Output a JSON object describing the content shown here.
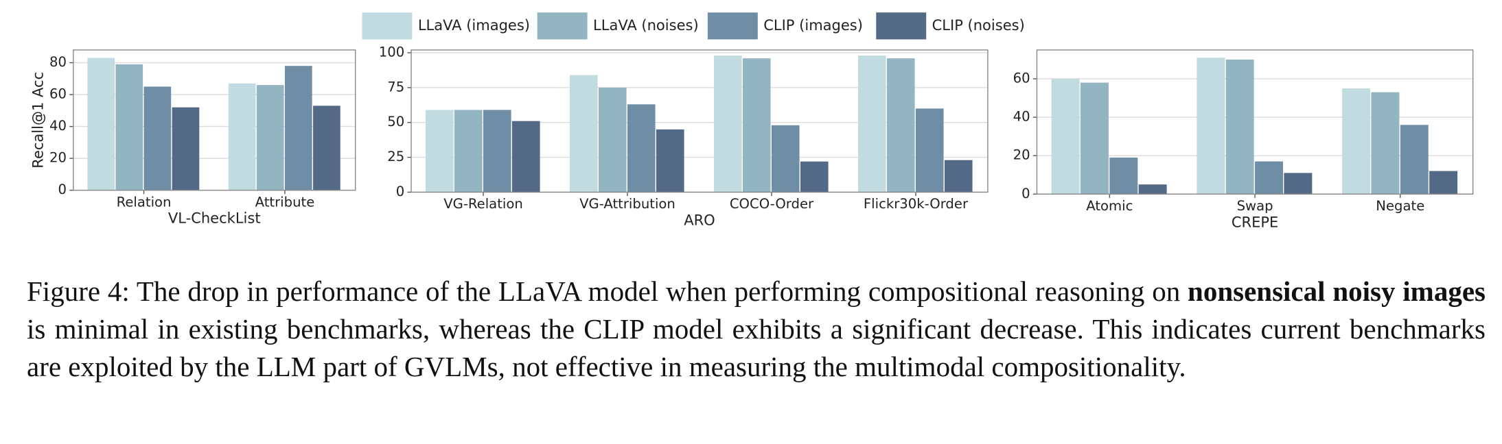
{
  "legend": [
    {
      "name": "LLaVA (images)",
      "color": "#c2dbe0"
    },
    {
      "name": "LLaVA (noises)",
      "color": "#93b5c2"
    },
    {
      "name": "CLIP (images)",
      "color": "#6f8ea6"
    },
    {
      "name": "CLIP (noises)",
      "color": "#536985"
    }
  ],
  "chart_data": [
    {
      "type": "bar",
      "xlabel": "VL-CheckList",
      "ylabel": "Recall@1 Acc",
      "categories": [
        "Relation",
        "Attribute"
      ],
      "series": [
        {
          "values": [
            83,
            67
          ]
        },
        {
          "values": [
            79,
            66
          ]
        },
        {
          "values": [
            65,
            78
          ]
        },
        {
          "values": [
            52,
            53
          ]
        }
      ],
      "ylim": [
        0,
        88
      ],
      "yticks": [
        0,
        20,
        40,
        60,
        80
      ],
      "grid": true
    },
    {
      "type": "bar",
      "xlabel": "ARO",
      "categories": [
        "VG-Relation",
        "VG-Attribution",
        "COCO-Order",
        "Flickr30k-Order"
      ],
      "series": [
        {
          "values": [
            59,
            84,
            98,
            98
          ]
        },
        {
          "values": [
            59,
            75,
            96,
            96
          ]
        },
        {
          "values": [
            59,
            63,
            48,
            60
          ]
        },
        {
          "values": [
            51,
            45,
            22,
            23
          ]
        }
      ],
      "ylim": [
        0,
        102
      ],
      "yticks": [
        0,
        25,
        50,
        75,
        100
      ],
      "grid": true
    },
    {
      "type": "bar",
      "xlabel": "CREPE",
      "categories": [
        "Atomic",
        "Swap",
        "Negate"
      ],
      "series": [
        {
          "values": [
            60,
            71,
            55
          ]
        },
        {
          "values": [
            58,
            70,
            53
          ]
        },
        {
          "values": [
            19,
            17,
            36
          ]
        },
        {
          "values": [
            5,
            11,
            12
          ]
        }
      ],
      "ylim": [
        0,
        75
      ],
      "yticks": [
        0,
        20,
        40,
        60
      ],
      "grid": true
    }
  ],
  "caption": [
    {
      "text": "Figure 4: The drop in performance of the LLaVA model when performing compositional reasoning on "
    },
    {
      "text": "nonsensical noisy images",
      "bold": true
    },
    {
      "text": " is minimal in existing benchmarks, whereas the CLIP model exhibits a significant decrease. This indicates current benchmarks are exploited by the LLM part of GVLMs, not effective in measuring the multimodal compositionality."
    }
  ]
}
